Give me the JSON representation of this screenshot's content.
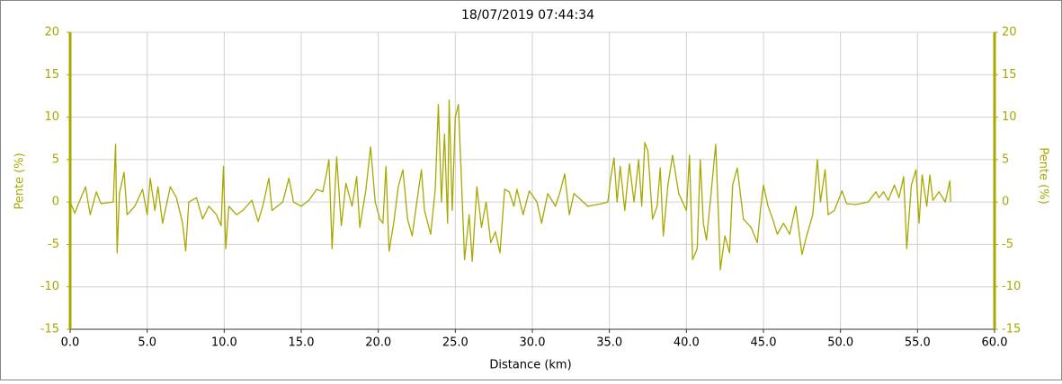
{
  "chart_data": {
    "type": "line",
    "title": "18/07/2019 07:44:34",
    "x_label": "Distance (km)",
    "y_label": "Pente (%)",
    "y2_label": "Pente (%)",
    "xlim": [
      0,
      60
    ],
    "ylim": [
      -15,
      20
    ],
    "y2lim": [
      -15,
      20
    ],
    "xticks": [
      {
        "value": 0,
        "label": "0.0"
      },
      {
        "value": 5,
        "label": "5.0"
      },
      {
        "value": 10,
        "label": "10.0"
      },
      {
        "value": 15,
        "label": "15.0"
      },
      {
        "value": 20,
        "label": "20.0"
      },
      {
        "value": 25,
        "label": "25.0"
      },
      {
        "value": 30,
        "label": "30.0"
      },
      {
        "value": 35,
        "label": "35.0"
      },
      {
        "value": 40,
        "label": "40.0"
      },
      {
        "value": 45,
        "label": "45.0"
      },
      {
        "value": 50,
        "label": "50.0"
      },
      {
        "value": 55,
        "label": "55.0"
      },
      {
        "value": 60,
        "label": "60.0"
      }
    ],
    "yticks": [
      -15,
      -10,
      -5,
      0,
      5,
      10,
      15,
      20
    ],
    "y2ticks": [
      -15,
      -10,
      -5,
      0,
      5,
      10,
      15,
      20
    ],
    "grid": true,
    "x": [
      0,
      0.3,
      0.7,
      1.0,
      1.3,
      1.7,
      2.0,
      2.8,
      2.95,
      3.05,
      3.2,
      3.5,
      3.7,
      4.2,
      4.7,
      5.0,
      5.2,
      5.5,
      5.7,
      6.0,
      6.5,
      6.9,
      7.3,
      7.5,
      7.7,
      8.2,
      8.6,
      9.0,
      9.5,
      9.8,
      9.95,
      10.1,
      10.3,
      10.8,
      11.2,
      11.8,
      12.2,
      12.5,
      12.9,
      13.1,
      13.8,
      14.2,
      14.5,
      15.0,
      15.5,
      16.0,
      16.4,
      16.6,
      16.8,
      17.0,
      17.3,
      17.6,
      17.9,
      18.3,
      18.6,
      18.8,
      19.2,
      19.5,
      19.8,
      20.1,
      20.3,
      20.5,
      20.7,
      21.0,
      21.3,
      21.6,
      21.9,
      22.2,
      22.5,
      22.8,
      23.0,
      23.4,
      23.7,
      23.9,
      24.1,
      24.3,
      24.5,
      24.6,
      24.8,
      25.0,
      25.2,
      25.4,
      25.6,
      25.9,
      26.1,
      26.4,
      26.7,
      27.0,
      27.3,
      27.6,
      27.9,
      28.2,
      28.5,
      28.8,
      29.0,
      29.4,
      29.8,
      30.3,
      30.6,
      31.0,
      31.5,
      31.8,
      32.1,
      32.4,
      32.7,
      33.0,
      33.6,
      34.5,
      34.9,
      35.1,
      35.3,
      35.5,
      35.7,
      36.0,
      36.3,
      36.6,
      36.9,
      37.1,
      37.3,
      37.5,
      37.8,
      38.1,
      38.3,
      38.5,
      38.8,
      39.1,
      39.5,
      40.0,
      40.2,
      40.4,
      40.7,
      40.9,
      41.1,
      41.3,
      41.6,
      41.9,
      42.1,
      42.2,
      42.5,
      42.8,
      43.0,
      43.3,
      43.7,
      44.2,
      44.6,
      44.8,
      45.0,
      45.3,
      45.6,
      45.9,
      46.3,
      46.7,
      47.1,
      47.5,
      47.8,
      48.2,
      48.5,
      48.7,
      49.0,
      49.2,
      49.6,
      50.1,
      50.4,
      51.0,
      51.8,
      52.3,
      52.5,
      52.8,
      53.1,
      53.5,
      53.8,
      54.1,
      54.3,
      54.6,
      54.9,
      55.1,
      55.3,
      55.6,
      55.8,
      56.0,
      56.4,
      56.8,
      57.1,
      57.15
    ],
    "series": [
      {
        "name": "Pente",
        "color": "#a8a800",
        "values": [
          0,
          -1.3,
          0.5,
          1.8,
          -1.5,
          1.2,
          -0.2,
          0,
          6.8,
          -6,
          1,
          3.5,
          -1.5,
          -0.5,
          1.5,
          -1.5,
          2.8,
          -1,
          1.8,
          -2.5,
          1.8,
          0.5,
          -2.5,
          -5.8,
          0,
          0.5,
          -2,
          -0.5,
          -1.5,
          -2.8,
          4.2,
          -5.5,
          -0.5,
          -1.5,
          -1,
          0.2,
          -2.3,
          -0.5,
          2.8,
          -1,
          0,
          2.8,
          0,
          -0.5,
          0.2,
          1.5,
          1.2,
          3,
          5,
          -5.5,
          5.3,
          -2.8,
          2.2,
          -0.5,
          3,
          -3,
          1.5,
          6.5,
          0,
          -2,
          -2.5,
          4.2,
          -5.8,
          -2.5,
          1.8,
          3.8,
          -2,
          -4,
          0,
          3.8,
          -1,
          -3.8,
          1.5,
          11.5,
          0,
          8,
          -2.5,
          12,
          -1,
          10,
          11.5,
          2.5,
          -6.8,
          -1.5,
          -7,
          1.8,
          -3,
          0,
          -4.8,
          -3.5,
          -6,
          1.5,
          1.2,
          -0.5,
          1.5,
          -1.5,
          1.3,
          0,
          -2.5,
          1,
          -0.5,
          1.2,
          3.3,
          -1.5,
          1,
          0.5,
          -0.5,
          -0.2,
          0,
          3,
          5.2,
          0,
          4.2,
          -1,
          4.5,
          0,
          5,
          -0.5,
          7,
          6,
          -2,
          -0.5,
          4,
          -4,
          2,
          5.5,
          1,
          -1,
          5.5,
          -6.8,
          -5.5,
          5,
          -2.5,
          -4.5,
          1,
          6.8,
          -2.5,
          -8,
          -4,
          -6,
          2,
          4,
          -2,
          -3,
          -4.8,
          -1,
          2,
          -0.5,
          -2,
          -3.8,
          -2.5,
          -3.8,
          -0.5,
          -6.2,
          -4,
          -1.5,
          5,
          0,
          3.8,
          -1.5,
          -1,
          1.3,
          -0.2,
          -0.3,
          0,
          1.2,
          0.5,
          1.2,
          0.2,
          2,
          0.5,
          3,
          -5.5,
          2,
          3.8,
          -2.5,
          3.2,
          -0.5,
          3.2,
          0.2,
          1.2,
          0,
          2.5,
          0
        ]
      }
    ]
  }
}
